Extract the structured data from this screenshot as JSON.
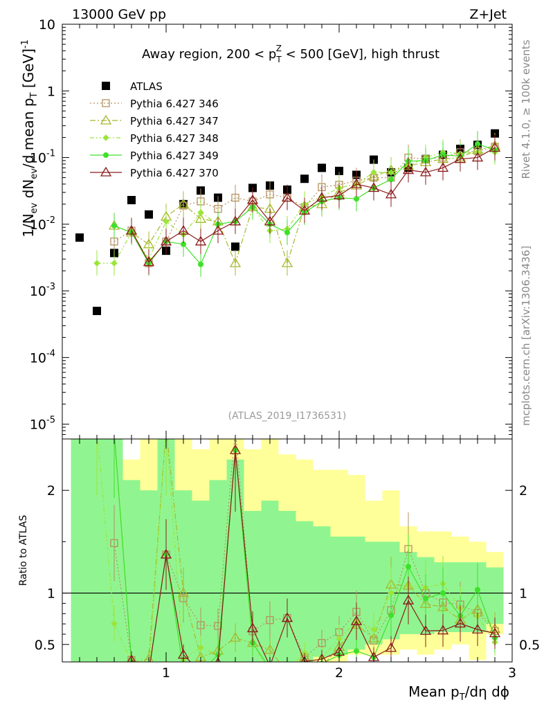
{
  "header": {
    "left": "13000 GeV pp",
    "right": "Z+Jet"
  },
  "side": {
    "rivet": "Rivet 4.1.0, ≥ 100k events",
    "mcplots": "mcplots.cern.ch [arXiv:1306.3436]"
  },
  "colors": {
    "atlas": "#000000",
    "p346": "#b5915f",
    "p347": "#a8b82a",
    "p348": "#9be53a",
    "p349": "#3fe02a",
    "p370": "#8b1a1a",
    "band_green": "#90f590",
    "band_yellow": "#ffff99"
  },
  "chart_data": [
    {
      "type": "scatter",
      "title": "Away region, 200 < p_T^Z < 500 [GeV], high thrust",
      "title_parts": {
        "a": "Away region, 200 < p",
        "sub": "T",
        "sup": "Z",
        "b": " < 500 [GeV], high thrust"
      },
      "watermark": "(ATLAS_2019_I1736531)",
      "ylabel": "1/N_ev dN_ev/d mean p_T [GeV]^-1",
      "ylabel_parts": {
        "a": "1/N",
        "sub1": "ev",
        "b": " dN",
        "sub2": "ev",
        "c": "/d mean p",
        "sub3": "T",
        "d": " [GeV]",
        "sup": "-1"
      },
      "yscale": "log",
      "ylim": [
        6e-06,
        10
      ],
      "xlim": [
        0.4,
        3.0
      ],
      "ytick_labels": [
        {
          "base": "10",
          "exp": "-5"
        },
        {
          "base": "10",
          "exp": "-4"
        },
        {
          "base": "10",
          "exp": "-3"
        },
        {
          "base": "10",
          "exp": "-2"
        },
        {
          "base": "10",
          "exp": "-1"
        },
        {
          "base": "1",
          "exp": ""
        },
        {
          "base": "10",
          "exp": ""
        }
      ],
      "ytick_values": [
        1e-05,
        0.0001,
        0.001,
        0.01,
        0.1,
        1,
        10
      ],
      "legend": [
        "ATLAS",
        "Pythia 6.427 346",
        "Pythia 6.427 347",
        "Pythia 6.427 348",
        "Pythia 6.427 349",
        "Pythia 6.427 370"
      ],
      "x": [
        0.5,
        0.6,
        0.7,
        0.8,
        0.9,
        1.0,
        1.1,
        1.2,
        1.3,
        1.4,
        1.5,
        1.6,
        1.7,
        1.8,
        1.9,
        2.0,
        2.1,
        2.2,
        2.3,
        2.4,
        2.5,
        2.6,
        2.7,
        2.8,
        2.9
      ],
      "series": [
        {
          "name": "ATLAS",
          "key": "atlas",
          "marker": "square",
          "line": "none",
          "values": [
            0.0063,
            0.0005,
            0.0037,
            0.023,
            0.014,
            0.004,
            0.02,
            0.032,
            0.025,
            0.0046,
            0.035,
            0.038,
            0.033,
            0.048,
            0.07,
            0.063,
            0.055,
            0.093,
            0.06,
            0.07,
            0.095,
            0.11,
            0.135,
            0.155,
            0.23
          ]
        },
        {
          "name": "Pythia 6.427 346",
          "key": "p346",
          "marker": "square-open",
          "line": "dotted",
          "values": [
            null,
            null,
            0.0055,
            0.008,
            0.0026,
            0.0055,
            0.019,
            0.022,
            0.017,
            0.025,
            0.022,
            0.028,
            0.025,
            0.018,
            0.036,
            0.039,
            0.045,
            0.05,
            0.05,
            0.1,
            0.095,
            0.1,
            0.12,
            0.125,
            0.145
          ]
        },
        {
          "name": "Pythia 6.427 347",
          "key": "p347",
          "marker": "triangle-open",
          "line": "dashdot",
          "values": [
            null,
            null,
            0.0095,
            0.0075,
            0.005,
            0.013,
            0.02,
            0.012,
            0.011,
            0.0026,
            0.018,
            0.017,
            0.0026,
            0.018,
            0.02,
            0.03,
            0.038,
            0.052,
            0.065,
            0.075,
            0.085,
            0.095,
            0.1,
            0.13,
            0.15
          ]
        },
        {
          "name": "Pythia 6.427 348",
          "key": "p348",
          "marker": "diamond",
          "line": "dashdot2",
          "values": [
            null,
            0.0026,
            0.0026,
            0.0075,
            0.003,
            0.011,
            0.007,
            0.015,
            0.01,
            0.011,
            0.018,
            0.008,
            0.0085,
            0.02,
            0.026,
            0.035,
            0.04,
            0.06,
            0.06,
            0.075,
            0.1,
            0.12,
            0.115,
            0.12,
            0.12
          ]
        },
        {
          "name": "Pythia 6.427 349",
          "key": "p349",
          "marker": "circle",
          "line": "solid",
          "values": [
            null,
            null,
            0.0095,
            0.0075,
            0.0026,
            0.0055,
            0.005,
            0.0025,
            0.01,
            0.011,
            0.018,
            0.01,
            0.0075,
            0.015,
            0.022,
            0.025,
            0.024,
            0.035,
            0.047,
            0.088,
            0.09,
            0.11,
            0.105,
            0.16,
            0.13
          ]
        },
        {
          "name": "Pythia 6.427 370",
          "key": "p370",
          "marker": "triangle-open",
          "line": "solid",
          "values": [
            null,
            null,
            null,
            0.008,
            0.0027,
            0.0055,
            0.008,
            0.0055,
            0.008,
            0.011,
            0.023,
            0.011,
            0.025,
            0.016,
            0.025,
            0.027,
            0.04,
            0.035,
            0.028,
            0.065,
            0.06,
            0.07,
            0.095,
            0.1,
            0.14
          ]
        }
      ]
    },
    {
      "type": "scatter",
      "title": "",
      "ylabel": "Ratio to ATLAS",
      "xlabel": "Mean p_T/dη dϕ",
      "xlabel_parts": {
        "a": "Mean p",
        "sub": "T",
        "b": "/dη dϕ"
      },
      "ylim": [
        0.33,
        2.5
      ],
      "xlim": [
        0.4,
        3.0
      ],
      "ytick_labels": [
        "0.5",
        "1",
        "2"
      ],
      "ytick_values": [
        0.5,
        1,
        2
      ],
      "xtick_labels": [
        "1",
        "2",
        "3"
      ],
      "xtick_values": [
        1,
        2,
        3
      ],
      "reference_line": 1,
      "bands": {
        "x_edges": [
          0.45,
          0.55,
          0.65,
          0.75,
          0.85,
          0.95,
          1.05,
          1.15,
          1.25,
          1.35,
          1.45,
          1.55,
          1.65,
          1.75,
          1.85,
          1.95,
          2.05,
          2.15,
          2.25,
          2.35,
          2.45,
          2.55,
          2.65,
          2.75,
          2.85,
          2.95
        ],
        "yellow_lo": [
          0.33,
          0.33,
          0.33,
          0.33,
          0.4,
          0.33,
          0.33,
          0.33,
          0.33,
          0.33,
          0.33,
          0.33,
          0.33,
          0.33,
          0.33,
          0.33,
          0.4,
          0.4,
          0.4,
          0.45,
          0.4,
          0.45,
          0.5,
          0.35,
          0.6
        ],
        "yellow_hi": [
          2.5,
          2.5,
          2.5,
          2.3,
          2.5,
          2.5,
          2.5,
          2.4,
          2.5,
          2.5,
          2.4,
          2.5,
          2.35,
          2.3,
          2.2,
          2.2,
          2.15,
          1.9,
          2.0,
          1.65,
          1.6,
          1.6,
          1.55,
          1.5,
          1.4
        ],
        "green_lo": [
          0.33,
          0.33,
          0.33,
          0.33,
          0.33,
          0.33,
          0.33,
          0.33,
          0.33,
          0.33,
          0.33,
          0.33,
          0.33,
          0.33,
          0.38,
          0.4,
          0.45,
          0.5,
          0.55,
          0.6,
          0.6,
          0.62,
          0.62,
          0.62,
          0.7
        ],
        "green_hi": [
          2.5,
          2.5,
          2.5,
          2.1,
          2.0,
          2.5,
          2.0,
          1.9,
          2.1,
          2.3,
          1.8,
          1.9,
          1.8,
          1.7,
          1.65,
          1.55,
          1.55,
          1.5,
          1.5,
          1.4,
          1.35,
          1.3,
          1.3,
          1.3,
          1.25
        ]
      }
    }
  ]
}
